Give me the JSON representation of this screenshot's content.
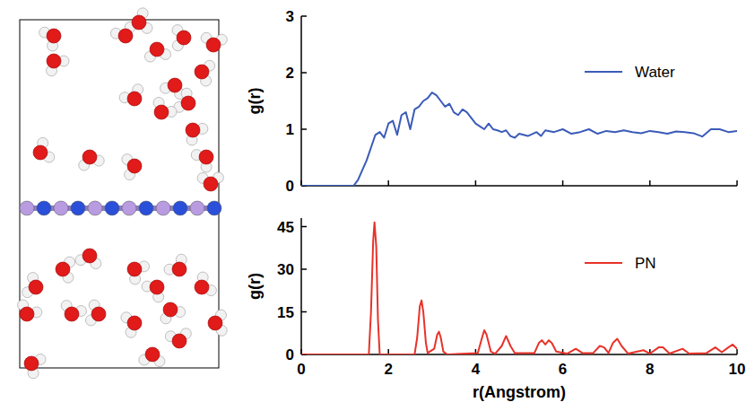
{
  "chart_data": [
    {
      "type": "line",
      "ylabel": "g(r)",
      "xlim": [
        0,
        10
      ],
      "xticks": [
        0,
        2,
        4,
        6,
        8,
        10
      ],
      "ylim": [
        0,
        3
      ],
      "yticks": [
        0,
        1,
        2,
        3
      ],
      "tick_labels": "y",
      "legend": "upper right",
      "grid": false,
      "series": [
        {
          "name": "Water",
          "color": "#3a5bb8",
          "line_style": "solid",
          "x": [
            0,
            1.2,
            1.3,
            1.5,
            1.7,
            1.8,
            1.9,
            2.0,
            2.1,
            2.2,
            2.3,
            2.4,
            2.5,
            2.6,
            2.7,
            2.8,
            2.9,
            3.0,
            3.1,
            3.2,
            3.3,
            3.4,
            3.5,
            3.6,
            3.7,
            3.8,
            3.9,
            4.0,
            4.1,
            4.2,
            4.3,
            4.4,
            4.5,
            4.6,
            4.7,
            4.8,
            4.9,
            5.0,
            5.2,
            5.4,
            5.5,
            5.6,
            5.8,
            6.0,
            6.2,
            6.4,
            6.6,
            6.8,
            7.0,
            7.2,
            7.4,
            7.6,
            7.8,
            8.0,
            8.2,
            8.4,
            8.6,
            8.8,
            9.0,
            9.2,
            9.4,
            9.6,
            9.8,
            10
          ],
          "values": [
            0,
            0,
            0.1,
            0.45,
            0.9,
            0.95,
            0.85,
            1.1,
            1.15,
            0.9,
            1.25,
            1.3,
            1.0,
            1.35,
            1.4,
            1.5,
            1.55,
            1.65,
            1.6,
            1.5,
            1.4,
            1.45,
            1.3,
            1.25,
            1.35,
            1.3,
            1.2,
            1.1,
            1.05,
            1.0,
            1.1,
            1.0,
            0.98,
            0.95,
            0.98,
            0.88,
            0.85,
            0.92,
            0.88,
            0.95,
            0.88,
            0.98,
            0.95,
            1.0,
            0.92,
            0.95,
            1.0,
            0.92,
            0.97,
            0.95,
            0.98,
            0.95,
            0.93,
            0.97,
            0.95,
            0.92,
            0.96,
            0.95,
            0.93,
            0.87,
            1.0,
            1.0,
            0.95,
            0.97
          ]
        }
      ]
    },
    {
      "type": "line",
      "ylabel": "g(r)",
      "xlabel": "r(Angstrom)",
      "xlim": [
        0,
        10
      ],
      "xticks": [
        0,
        2,
        4,
        6,
        8,
        10
      ],
      "ylim": [
        0,
        48
      ],
      "yticks": [
        0,
        15,
        30,
        45
      ],
      "legend": "upper right",
      "grid": false,
      "series": [
        {
          "name": "PN",
          "color": "#e8322a",
          "line_style": "solid",
          "x": [
            0,
            1.55,
            1.6,
            1.65,
            1.68,
            1.72,
            1.76,
            1.8,
            2.6,
            2.66,
            2.72,
            2.76,
            2.8,
            2.86,
            2.9,
            3.05,
            3.12,
            3.16,
            3.2,
            3.26,
            3.35,
            4.05,
            4.15,
            4.2,
            4.25,
            4.35,
            4.45,
            4.6,
            4.7,
            4.8,
            4.9,
            5.35,
            5.45,
            5.52,
            5.6,
            5.68,
            5.75,
            5.85,
            6.1,
            6.3,
            6.45,
            6.7,
            6.85,
            6.95,
            7.05,
            7.15,
            7.25,
            7.35,
            7.5,
            7.85,
            8.0,
            8.2,
            8.3,
            8.45,
            8.75,
            8.9,
            9.3,
            9.5,
            9.65,
            9.8,
            9.9,
            10
          ],
          "values": [
            0,
            0,
            15,
            40,
            46.5,
            38,
            12,
            0,
            0,
            6,
            17,
            19,
            15,
            4,
            0.5,
            2,
            7,
            8,
            6,
            1,
            0,
            0.5,
            6,
            8.5,
            7,
            1,
            0.3,
            3,
            6.5,
            3,
            0.5,
            0.5,
            4,
            5,
            3.5,
            5,
            4,
            1,
            0.3,
            2,
            0.5,
            0.5,
            3,
            2.5,
            0.5,
            4,
            5.5,
            3,
            0.3,
            1.5,
            0.3,
            2.5,
            2.5,
            0.3,
            2,
            0.3,
            0.5,
            2.5,
            0.8,
            2.5,
            3.5,
            2
          ]
        }
      ]
    }
  ]
}
